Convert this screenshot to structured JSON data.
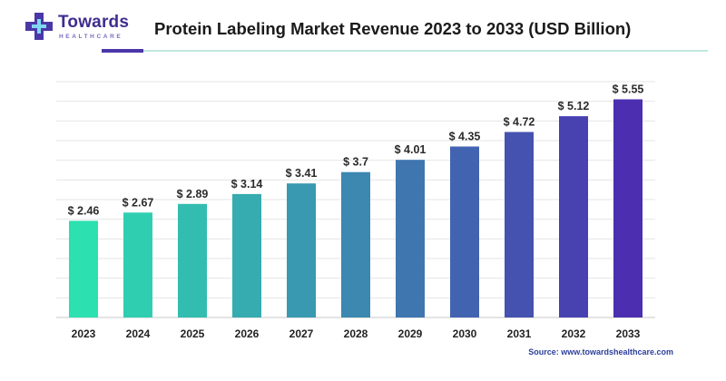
{
  "logo": {
    "name": "Towards",
    "sub": "HEALTHCARE"
  },
  "title": "Protein Labeling Market Revenue 2023 to 2033 (USD Billion)",
  "source": "Source: www.towardshealthcare.com",
  "colors": {
    "brand": "#3f2d8f",
    "bar_start": "#2de0b0",
    "bar_end": "#4b2fb0",
    "accent_rule": "#bfe8df"
  },
  "chart_data": {
    "type": "bar",
    "title": "Protein Labeling Market Revenue 2023 to 2033 (USD Billion)",
    "categories": [
      "2023",
      "2024",
      "2025",
      "2026",
      "2027",
      "2028",
      "2029",
      "2030",
      "2031",
      "2032",
      "2033"
    ],
    "values": [
      2.46,
      2.67,
      2.89,
      3.14,
      3.41,
      3.7,
      4.01,
      4.35,
      4.72,
      5.12,
      5.55
    ],
    "value_labels": [
      "$ 2.46",
      "$ 2.67",
      "$ 2.89",
      "$ 3.14",
      "$ 3.41",
      "$ 3.7",
      "$ 4.01",
      "$ 4.35",
      "$ 4.72",
      "$ 5.12",
      "$ 5.55"
    ],
    "xlabel": "",
    "ylabel": "",
    "ylim": [
      0,
      6
    ],
    "grid": true,
    "legend": "none"
  }
}
